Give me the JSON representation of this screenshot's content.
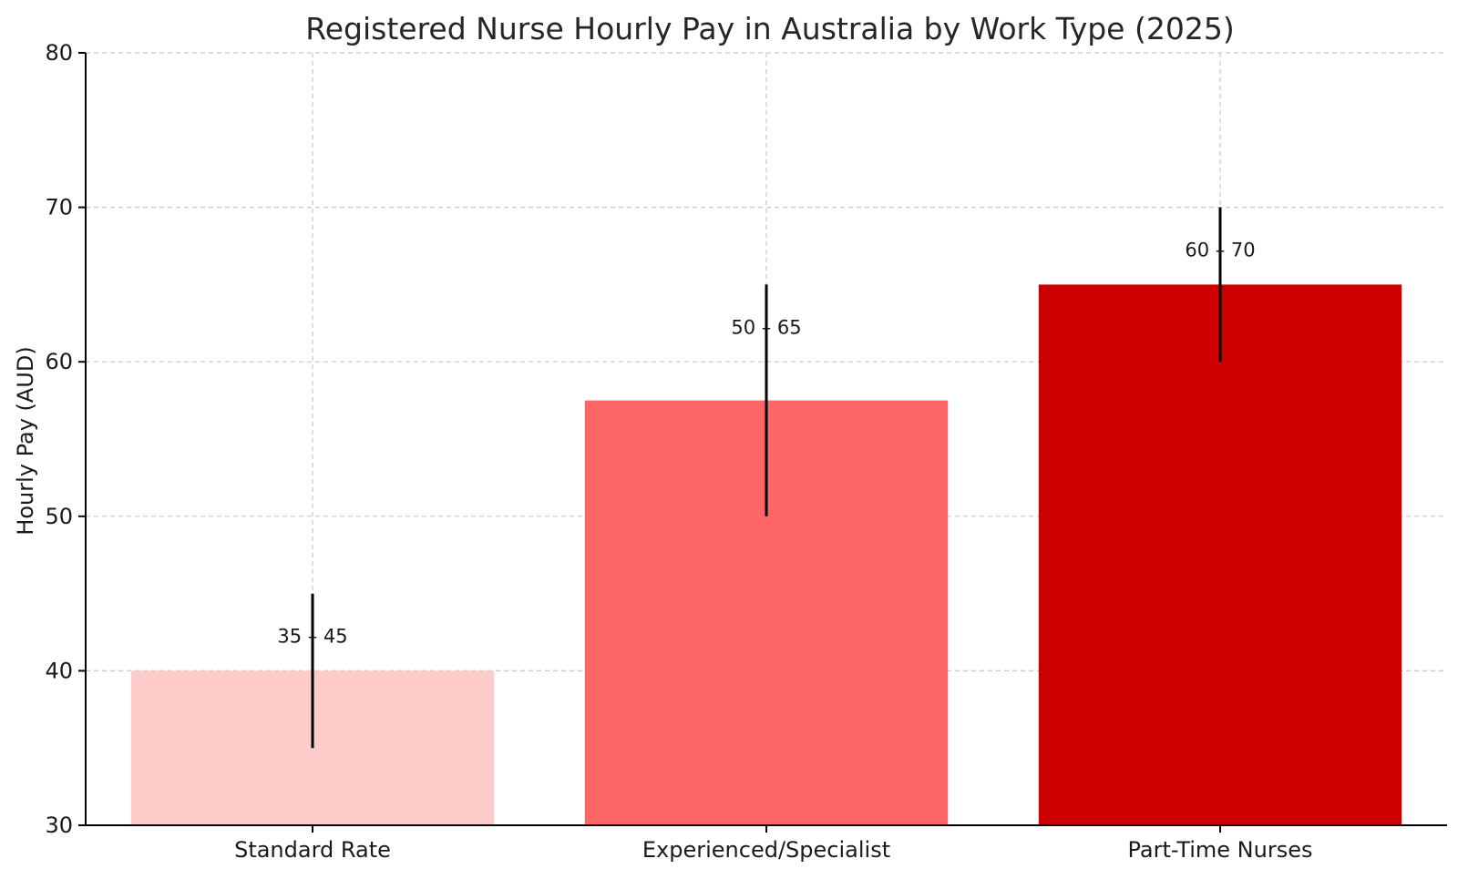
{
  "chart_data": {
    "type": "bar",
    "title": "Registered Nurse Hourly Pay in Australia by Work Type (2025)",
    "xlabel": "",
    "ylabel": "Hourly Pay (AUD)",
    "ylim": [
      30,
      80
    ],
    "yticks": [
      30,
      40,
      50,
      60,
      70,
      80
    ],
    "grid": true,
    "legend": "none",
    "categories": [
      "Standard Rate",
      "Experienced/Specialist",
      "Part-Time Nurses"
    ],
    "values": [
      40,
      57.5,
      65
    ],
    "ranges": [
      [
        35,
        45
      ],
      [
        50,
        65
      ],
      [
        60,
        70
      ]
    ],
    "data_labels": [
      "35 – 45",
      "50 – 65",
      "60 – 70"
    ],
    "colors": [
      "#ffcccc",
      "#ff6666",
      "#cc0000"
    ]
  }
}
